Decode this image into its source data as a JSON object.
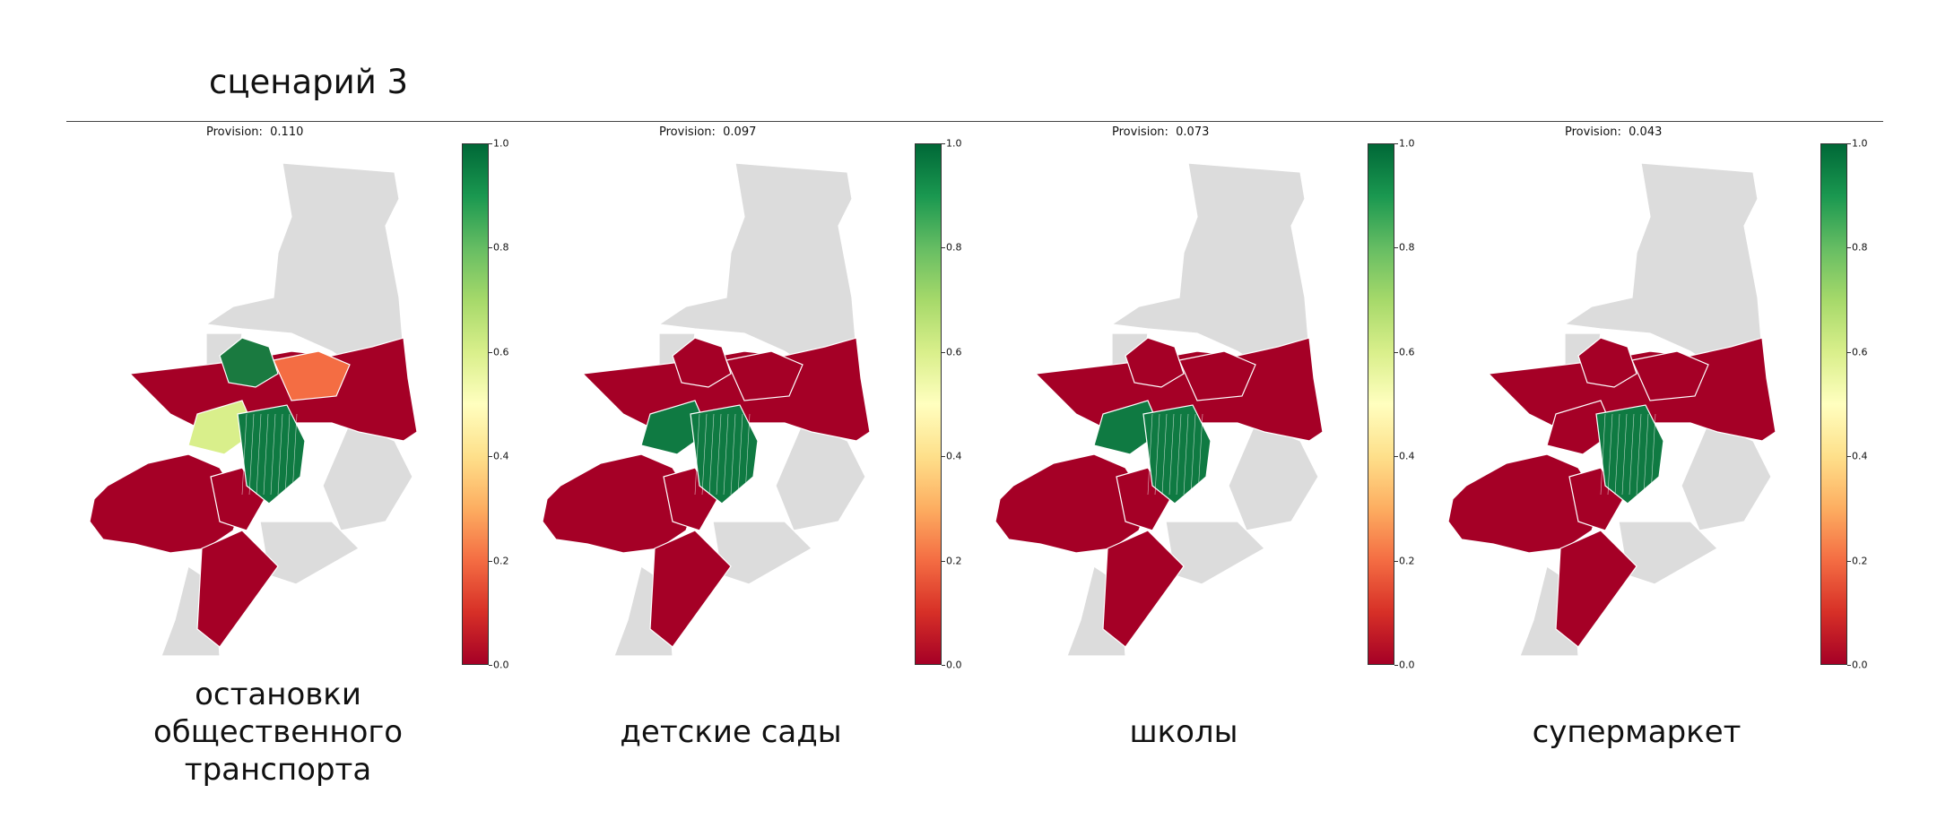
{
  "title": "сценарий 3",
  "colorbar": {
    "ticks": [
      "0.0",
      "0.2",
      "0.4",
      "0.6",
      "0.8",
      "1.0"
    ],
    "colors": [
      "#a50026",
      "#d73027",
      "#f46d43",
      "#fdae61",
      "#fee08b",
      "#ffffbf",
      "#d9ef8b",
      "#a6d96a",
      "#66bd63",
      "#1a9850",
      "#006837"
    ]
  },
  "panels": [
    {
      "provision_label": "Provision:",
      "provision_value": "0.110",
      "caption_lines": [
        "остановки",
        "общественного",
        "транспорта"
      ],
      "north_color": "#1a7a40",
      "center_color": "#f46d43",
      "west_color": "#d9ef8b",
      "south_color": "#0f7a42"
    },
    {
      "provision_label": "Provision:",
      "provision_value": "0.097",
      "caption_lines": [
        "детские сады"
      ],
      "north_color": "#a50026",
      "center_color": "#a50026",
      "west_color": "#0f7a42",
      "south_color": "#0f7a42"
    },
    {
      "provision_label": "Provision:",
      "provision_value": "0.073",
      "caption_lines": [
        "школы"
      ],
      "north_color": "#a50026",
      "center_color": "#a50026",
      "west_color": "#0f7a42",
      "south_color": "#0f7a42"
    },
    {
      "provision_label": "Provision:",
      "provision_value": "0.043",
      "caption_lines": [
        "супермаркет"
      ],
      "north_color": "#a50026",
      "center_color": "#a50026",
      "west_color": "#a50026",
      "south_color": "#0f7a42"
    }
  ]
}
